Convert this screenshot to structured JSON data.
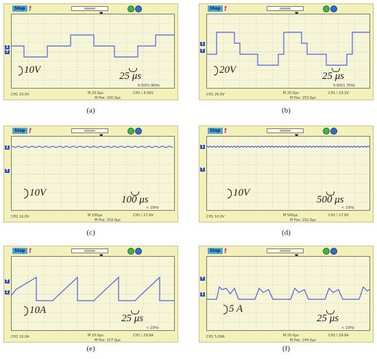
{
  "panels": [
    {
      "stop_label": "Stop",
      "caption": "(a)",
      "voltage_annotation": "10V",
      "time_annotation": "25 μs",
      "status_freq": "9.5001.9KHz",
      "status_ch1": "CH1 10.0V",
      "status_m": "M 25.0μs",
      "status_mpos": "M Pos: 100.0μs",
      "status_ch2": "CH1 \\ 4.00V",
      "waveform_type": "square-wave"
    },
    {
      "stop_label": "Stop",
      "caption": "(b)",
      "voltage_annotation": "20V",
      "time_annotation": "25 μs",
      "status_freq": "9.9001.7KHz",
      "status_ch1": "CH1 20.0V",
      "status_m": "M 25.0μs",
      "status_mpos": "M Pos: 153.0μs",
      "status_ch2": "CH1 \\ 19.2V",
      "waveform_type": "stepped-square-wave"
    },
    {
      "stop_label": "Stop",
      "caption": "(c)",
      "voltage_annotation": "10V",
      "time_annotation": "100 μs",
      "status_freq": "< 10Hz",
      "status_ch1": "CH1 10.0V",
      "status_m": "M 100μs",
      "status_mpos": "M Pos: 152.0μs",
      "status_ch2": "CH1 \\ 17.6V",
      "waveform_type": "flat-ripple"
    },
    {
      "stop_label": "Stop",
      "caption": "(d)",
      "voltage_annotation": "10V",
      "time_annotation": "500 μs",
      "status_freq": "< 10Hz",
      "status_ch1": "CH1 10.0V",
      "status_m": "M 500μs",
      "status_mpos": "M Pos: 152.0μs",
      "status_ch2": "CH1 \\ 17.6V",
      "waveform_type": "flat-dense-ripple"
    },
    {
      "stop_label": "Stop",
      "caption": "(e)",
      "voltage_annotation": "10A",
      "time_annotation": "25 μs",
      "status_freq": "< 10Hz",
      "status_ch1": "CH1 10.0A",
      "status_m": "M 25.0μs",
      "status_mpos": "M Pos: 157.0μs",
      "status_ch2": "CH1 \\ 29.6A",
      "waveform_type": "sawtooth"
    },
    {
      "stop_label": "Stop",
      "caption": "(f)",
      "voltage_annotation": "5 A",
      "time_annotation": "25 μs",
      "status_freq": "< 10Hz",
      "status_ch1": "CH1 5.00A",
      "status_m": "M 25.0μs",
      "status_mpos": "M Pos: 144.0μs",
      "status_ch2": "CH1 \\ 29.6A",
      "waveform_type": "spiky-current"
    }
  ],
  "colors": {
    "scope_frame": "#f3f0b9",
    "screen": "#f7f5d7",
    "trace": "#4b5fe0",
    "stop_badge": "#4fa6d9"
  }
}
